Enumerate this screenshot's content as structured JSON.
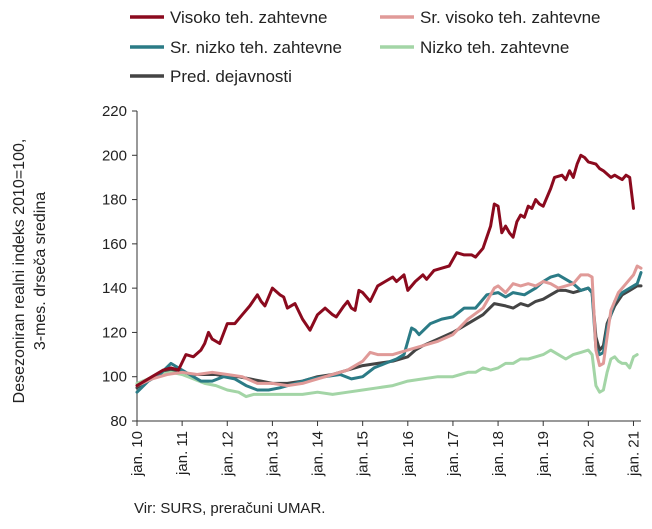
{
  "chart_data": {
    "type": "line",
    "ylabel": [
      "Desezoniran realni indeks 2010=100,",
      "3-mes. drseča sredina"
    ],
    "ylim": [
      80,
      220
    ],
    "yticks": [
      80,
      100,
      120,
      140,
      160,
      180,
      200,
      220
    ],
    "xtick_labels": [
      "jan. 10",
      "jan. 11",
      "jan. 12",
      "jan. 13",
      "jan. 14",
      "jan. 15",
      "jan. 16",
      "jan. 17",
      "jan. 18",
      "jan. 19",
      "jan. 20",
      "jan. 21"
    ],
    "x_range_months": [
      0,
      134
    ],
    "legend_position": "top",
    "grid": false,
    "series": [
      {
        "name": "Visoko teh. zahtevne",
        "color": "#8b0a1e",
        "points": [
          [
            0,
            96
          ],
          [
            4,
            100
          ],
          [
            7,
            103
          ],
          [
            9,
            104
          ],
          [
            11,
            103
          ],
          [
            13,
            110
          ],
          [
            15,
            109
          ],
          [
            17,
            112
          ],
          [
            18,
            115
          ],
          [
            19,
            120
          ],
          [
            20,
            117
          ],
          [
            22,
            115
          ],
          [
            24,
            124
          ],
          [
            26,
            124
          ],
          [
            28,
            128
          ],
          [
            30,
            132
          ],
          [
            32,
            137
          ],
          [
            33,
            134
          ],
          [
            34,
            132
          ],
          [
            36,
            140
          ],
          [
            38,
            137
          ],
          [
            39,
            136
          ],
          [
            40,
            131
          ],
          [
            42,
            133
          ],
          [
            44,
            126
          ],
          [
            46,
            121
          ],
          [
            48,
            128
          ],
          [
            50,
            131
          ],
          [
            52,
            128
          ],
          [
            53,
            127
          ],
          [
            55,
            132
          ],
          [
            56,
            134
          ],
          [
            57,
            131
          ],
          [
            58,
            130
          ],
          [
            59,
            139
          ],
          [
            60,
            138
          ],
          [
            62,
            134
          ],
          [
            64,
            141
          ],
          [
            66,
            143
          ],
          [
            68,
            145
          ],
          [
            69,
            143
          ],
          [
            71,
            146
          ],
          [
            72,
            139
          ],
          [
            74,
            143
          ],
          [
            76,
            146
          ],
          [
            77,
            144
          ],
          [
            79,
            148
          ],
          [
            81,
            149
          ],
          [
            83,
            150
          ],
          [
            85,
            156
          ],
          [
            87,
            155
          ],
          [
            89,
            155
          ],
          [
            90,
            154
          ],
          [
            92,
            158
          ],
          [
            94,
            168
          ],
          [
            95,
            178
          ],
          [
            96,
            177
          ],
          [
            97,
            165
          ],
          [
            98,
            168
          ],
          [
            99,
            165
          ],
          [
            100,
            163
          ],
          [
            101,
            170
          ],
          [
            102,
            173
          ],
          [
            103,
            172
          ],
          [
            104,
            177
          ],
          [
            105,
            176
          ],
          [
            106,
            180
          ],
          [
            107,
            178
          ],
          [
            108,
            177
          ],
          [
            110,
            185
          ],
          [
            111,
            190
          ],
          [
            113,
            191
          ],
          [
            114,
            189
          ],
          [
            115,
            193
          ],
          [
            116,
            190
          ],
          [
            117,
            196
          ],
          [
            118,
            200
          ],
          [
            119,
            199
          ],
          [
            120,
            197
          ],
          [
            122,
            196
          ],
          [
            123,
            194
          ],
          [
            124,
            193
          ],
          [
            126,
            190
          ],
          [
            127,
            191
          ],
          [
            128,
            190
          ],
          [
            129,
            189
          ],
          [
            130,
            191
          ],
          [
            131,
            190
          ],
          [
            132,
            176
          ]
        ]
      },
      {
        "name": "Sr. visoko teh. zahtevne",
        "color": "#e09a98",
        "points": [
          [
            0,
            96
          ],
          [
            4,
            99
          ],
          [
            8,
            101
          ],
          [
            12,
            102
          ],
          [
            16,
            101
          ],
          [
            20,
            102
          ],
          [
            24,
            101
          ],
          [
            28,
            100
          ],
          [
            32,
            97
          ],
          [
            36,
            97
          ],
          [
            40,
            96
          ],
          [
            44,
            97
          ],
          [
            48,
            99
          ],
          [
            52,
            101
          ],
          [
            56,
            103
          ],
          [
            60,
            107
          ],
          [
            62,
            111
          ],
          [
            64,
            110
          ],
          [
            68,
            110
          ],
          [
            72,
            112
          ],
          [
            76,
            114
          ],
          [
            80,
            116
          ],
          [
            84,
            119
          ],
          [
            88,
            126
          ],
          [
            92,
            131
          ],
          [
            95,
            140
          ],
          [
            96,
            141
          ],
          [
            98,
            138
          ],
          [
            100,
            142
          ],
          [
            102,
            141
          ],
          [
            104,
            142
          ],
          [
            106,
            141
          ],
          [
            108,
            143
          ],
          [
            110,
            142
          ],
          [
            112,
            140
          ],
          [
            114,
            141
          ],
          [
            116,
            142
          ],
          [
            118,
            146
          ],
          [
            120,
            146
          ],
          [
            121,
            145
          ],
          [
            122,
            112
          ],
          [
            123,
            105
          ],
          [
            124,
            106
          ],
          [
            125,
            118
          ],
          [
            126,
            130
          ],
          [
            128,
            138
          ],
          [
            130,
            142
          ],
          [
            132,
            146
          ],
          [
            133,
            150
          ],
          [
            134,
            149
          ]
        ]
      },
      {
        "name": "Sr. nizko teh. zahtevne",
        "color": "#2b7b86",
        "points": [
          [
            0,
            93
          ],
          [
            3,
            98
          ],
          [
            6,
            101
          ],
          [
            9,
            106
          ],
          [
            11,
            104
          ],
          [
            14,
            101
          ],
          [
            17,
            98
          ],
          [
            20,
            98
          ],
          [
            23,
            100
          ],
          [
            26,
            99
          ],
          [
            29,
            96
          ],
          [
            32,
            94
          ],
          [
            35,
            94
          ],
          [
            38,
            95
          ],
          [
            42,
            97
          ],
          [
            46,
            99
          ],
          [
            50,
            100
          ],
          [
            54,
            101
          ],
          [
            57,
            99
          ],
          [
            60,
            100
          ],
          [
            63,
            104
          ],
          [
            66,
            106
          ],
          [
            69,
            108
          ],
          [
            71,
            110
          ],
          [
            73,
            122
          ],
          [
            74,
            121
          ],
          [
            75,
            119
          ],
          [
            78,
            124
          ],
          [
            81,
            126
          ],
          [
            84,
            127
          ],
          [
            87,
            131
          ],
          [
            90,
            131
          ],
          [
            93,
            137
          ],
          [
            96,
            138
          ],
          [
            98,
            136
          ],
          [
            100,
            138
          ],
          [
            103,
            137
          ],
          [
            106,
            140
          ],
          [
            108,
            143
          ],
          [
            110,
            145
          ],
          [
            112,
            146
          ],
          [
            114,
            144
          ],
          [
            116,
            142
          ],
          [
            118,
            139
          ],
          [
            120,
            140
          ],
          [
            121,
            138
          ],
          [
            122,
            113
          ],
          [
            123,
            110
          ],
          [
            124,
            111
          ],
          [
            125,
            122
          ],
          [
            127,
            134
          ],
          [
            129,
            138
          ],
          [
            131,
            140
          ],
          [
            133,
            142
          ],
          [
            134,
            147
          ]
        ]
      },
      {
        "name": "Nizko teh. zahtevne",
        "color": "#a3d5a6",
        "points": [
          [
            0,
            97
          ],
          [
            3,
            99
          ],
          [
            6,
            101
          ],
          [
            9,
            102
          ],
          [
            12,
            101
          ],
          [
            15,
            99
          ],
          [
            18,
            97
          ],
          [
            21,
            96
          ],
          [
            24,
            94
          ],
          [
            27,
            93
          ],
          [
            29,
            91
          ],
          [
            31,
            92
          ],
          [
            33,
            92
          ],
          [
            36,
            92
          ],
          [
            40,
            92
          ],
          [
            44,
            92
          ],
          [
            48,
            93
          ],
          [
            52,
            92
          ],
          [
            56,
            93
          ],
          [
            60,
            94
          ],
          [
            64,
            95
          ],
          [
            68,
            96
          ],
          [
            72,
            98
          ],
          [
            76,
            99
          ],
          [
            80,
            100
          ],
          [
            84,
            100
          ],
          [
            86,
            101
          ],
          [
            88,
            102
          ],
          [
            90,
            102
          ],
          [
            92,
            104
          ],
          [
            94,
            103
          ],
          [
            96,
            104
          ],
          [
            98,
            106
          ],
          [
            100,
            106
          ],
          [
            102,
            108
          ],
          [
            104,
            108
          ],
          [
            106,
            109
          ],
          [
            108,
            110
          ],
          [
            110,
            112
          ],
          [
            112,
            110
          ],
          [
            114,
            108
          ],
          [
            116,
            110
          ],
          [
            118,
            111
          ],
          [
            120,
            112
          ],
          [
            121,
            110
          ],
          [
            122,
            96
          ],
          [
            123,
            93
          ],
          [
            124,
            94
          ],
          [
            125,
            102
          ],
          [
            126,
            108
          ],
          [
            127,
            109
          ],
          [
            128,
            107
          ],
          [
            129,
            106
          ],
          [
            130,
            106
          ],
          [
            131,
            104
          ],
          [
            132,
            109
          ],
          [
            133,
            110
          ]
        ]
      },
      {
        "name": "Pred. dejavnosti",
        "color": "#444444",
        "points": [
          [
            0,
            95
          ],
          [
            3,
            99
          ],
          [
            6,
            101
          ],
          [
            9,
            103
          ],
          [
            12,
            102
          ],
          [
            15,
            101
          ],
          [
            18,
            101
          ],
          [
            21,
            101
          ],
          [
            24,
            100
          ],
          [
            27,
            100
          ],
          [
            30,
            99
          ],
          [
            33,
            98
          ],
          [
            36,
            97
          ],
          [
            40,
            97
          ],
          [
            44,
            98
          ],
          [
            48,
            100
          ],
          [
            52,
            101
          ],
          [
            56,
            103
          ],
          [
            60,
            105
          ],
          [
            64,
            106
          ],
          [
            68,
            107
          ],
          [
            72,
            109
          ],
          [
            74,
            112
          ],
          [
            76,
            114
          ],
          [
            80,
            117
          ],
          [
            84,
            120
          ],
          [
            88,
            124
          ],
          [
            92,
            128
          ],
          [
            95,
            133
          ],
          [
            98,
            132
          ],
          [
            100,
            131
          ],
          [
            102,
            133
          ],
          [
            104,
            132
          ],
          [
            106,
            134
          ],
          [
            108,
            135
          ],
          [
            110,
            137
          ],
          [
            112,
            139
          ],
          [
            114,
            139
          ],
          [
            116,
            138
          ],
          [
            118,
            139
          ],
          [
            120,
            140
          ],
          [
            121,
            138
          ],
          [
            122,
            118
          ],
          [
            123,
            112
          ],
          [
            124,
            114
          ],
          [
            125,
            124
          ],
          [
            127,
            132
          ],
          [
            129,
            137
          ],
          [
            131,
            139
          ],
          [
            133,
            141
          ],
          [
            134,
            141
          ]
        ]
      }
    ]
  },
  "source_note": "Vir: SURS, preračuni UMAR."
}
